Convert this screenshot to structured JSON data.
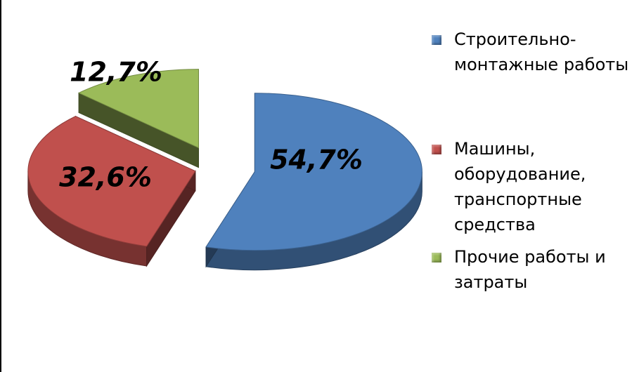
{
  "chart_data": {
    "type": "pie",
    "style": "3d-exploded",
    "title": "",
    "slices": [
      {
        "label": "Строительно-\nмонтажные работы",
        "value": 54.7,
        "value_label": "54,7%",
        "color": "#4F81BD"
      },
      {
        "label": "Машины,\nоборудование,\nтранспортные\nсредства",
        "value": 32.6,
        "value_label": "32,6%",
        "color": "#C0504D"
      },
      {
        "label": "Прочие работы и\nзатраты",
        "value": 12.7,
        "value_label": "12,7%",
        "color": "#9BBB59"
      }
    ],
    "legend_position": "right"
  }
}
